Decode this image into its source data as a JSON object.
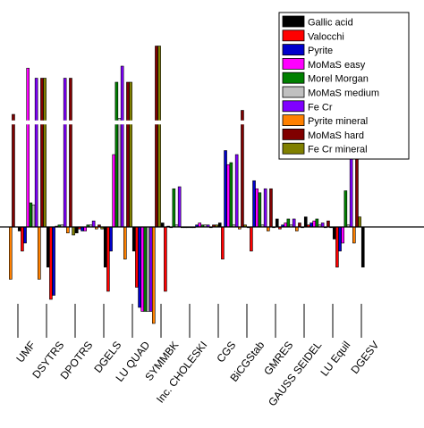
{
  "chart_data": {
    "type": "bar",
    "title": "",
    "xlabel": "",
    "ylabel": "",
    "ylim": [
      -1.9,
      4.6
    ],
    "axis_break": {
      "low": 2.55,
      "high": 2.65
    },
    "grid": false,
    "legend_placement": "top-right",
    "categories": [
      "",
      "UMF",
      "DSYTRS",
      "DPOTRS",
      "DGELS",
      "LU QUAD",
      "SYMMBK",
      "Inc. CHOLESKI",
      "CGS",
      "BiCGStab",
      "GMRES",
      "GAUSS SEIDEL",
      "LU Equil",
      "DGESV"
    ],
    "series": [
      {
        "name": "Gallic acid",
        "color": "#000000",
        "values": [
          null,
          -0.1,
          -1.0,
          -0.15,
          -1.0,
          -0.6,
          0.1,
          0.0,
          0.1,
          0.0,
          0.2,
          0.25,
          -0.3,
          -1.0
        ]
      },
      {
        "name": "Valocchi",
        "color": "#ff0000",
        "values": [
          null,
          -0.6,
          -1.8,
          -0.05,
          -1.6,
          -1.5,
          -1.6,
          0.0,
          -0.8,
          -0.6,
          -0.05,
          0.05,
          -1.0,
          null
        ]
      },
      {
        "name": "Pyrite",
        "color": "#0000cc",
        "values": [
          null,
          -0.4,
          -1.7,
          -0.1,
          -0.6,
          -2.0,
          0.02,
          0.05,
          1.9,
          1.15,
          0.05,
          0.1,
          -0.6,
          null
        ]
      },
      {
        "name": "MoMaS easy",
        "color": "#ff00ff",
        "values": [
          null,
          3.95,
          0.02,
          -0.1,
          1.8,
          -2.1,
          0.0,
          0.1,
          1.55,
          0.95,
          0.1,
          0.15,
          -0.4,
          null
        ]
      },
      {
        "name": "Morel Morgan",
        "color": "#008000",
        "values": [
          null,
          0.6,
          0.05,
          0.05,
          3.6,
          -2.1,
          0.95,
          0.05,
          1.6,
          0.85,
          0.2,
          0.2,
          0.9,
          null
        ]
      },
      {
        "name": "MoMaS medium",
        "color": "#c0c0c0",
        "values": [
          null,
          0.55,
          0.05,
          0.05,
          2.7,
          -2.1,
          0.05,
          0.05,
          0.05,
          0.05,
          0.05,
          0.05,
          0.05,
          null
        ]
      },
      {
        "name": "Fe Cr",
        "color": "#8000ff",
        "values": [
          null,
          3.7,
          3.7,
          0.15,
          4.0,
          -2.1,
          1.0,
          0.05,
          1.8,
          0.95,
          0.2,
          0.1,
          2.3,
          null
        ]
      },
      {
        "name": "Pyrite mineral",
        "color": "#ff8000",
        "values": [
          -1.3,
          -1.3,
          -0.15,
          -0.05,
          -0.8,
          -2.4,
          0.0,
          0.0,
          -0.05,
          -0.1,
          -0.1,
          0.0,
          -0.4,
          null
        ]
      },
      {
        "name": "MoMaS hard",
        "color": "#800000",
        "values": [
          2.8,
          3.7,
          3.7,
          0.05,
          3.6,
          4.5,
          0.0,
          0.05,
          2.9,
          0.95,
          0.1,
          0.15,
          3.7,
          null
        ]
      },
      {
        "name": "Fe Cr mineral",
        "color": "#808000",
        "values": [
          null,
          3.7,
          -0.2,
          -0.05,
          3.6,
          4.5,
          0.0,
          0.05,
          0.05,
          0.0,
          0.0,
          0.0,
          0.25,
          null
        ]
      }
    ]
  }
}
